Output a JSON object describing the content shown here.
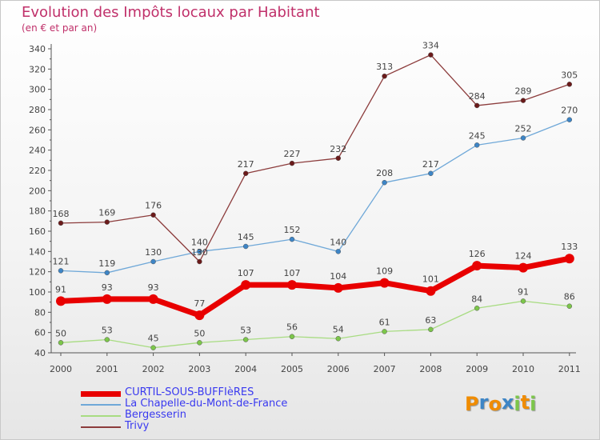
{
  "header": {
    "title": "Evolution des Impôts locaux par Habitant",
    "subtitle": "(en € et par an)"
  },
  "colors": {
    "title": "#c0306a",
    "axis": "#555555",
    "tick_label": "#444444",
    "data_label": "#444444",
    "legend_text": "#3a3af0"
  },
  "chart_data": {
    "type": "line",
    "x": [
      "2000",
      "2001",
      "2002",
      "2003",
      "2004",
      "2005",
      "2006",
      "2007",
      "2008",
      "2009",
      "2010",
      "2011"
    ],
    "ylim": [
      40,
      340
    ],
    "yticks": [
      40,
      60,
      80,
      100,
      120,
      140,
      160,
      180,
      200,
      220,
      240,
      260,
      280,
      300,
      320,
      340
    ],
    "grid": false,
    "legend_position": "bottom-left",
    "series": [
      {
        "name": "CURTIL-SOUS-BUFFIèRES",
        "values": [
          91,
          93,
          93,
          77,
          107,
          107,
          104,
          109,
          101,
          126,
          124,
          133
        ],
        "color": "#e80000",
        "marker": "#e80000",
        "emphasis": true
      },
      {
        "name": "La Chapelle-du-Mont-de-France",
        "values": [
          121,
          119,
          130,
          140,
          145,
          152,
          140,
          208,
          217,
          245,
          252,
          270
        ],
        "color": "#6fa8d8",
        "marker": "#3d85c6",
        "emphasis": false
      },
      {
        "name": "Bergesserin",
        "values": [
          50,
          53,
          45,
          50,
          53,
          56,
          54,
          61,
          63,
          84,
          91,
          86
        ],
        "color": "#a8dc82",
        "marker": "#7cc64a",
        "emphasis": false
      },
      {
        "name": "Trivy",
        "values": [
          168,
          169,
          176,
          130,
          217,
          227,
          232,
          313,
          334,
          284,
          289,
          305
        ],
        "color": "#8c3c3c",
        "marker": "#6b1a1a",
        "emphasis": false
      }
    ]
  },
  "logo": {
    "letters": [
      "P",
      "r",
      "o",
      "x",
      "i",
      "t",
      "i"
    ],
    "colors": [
      "#f08c00",
      "#3d85c6",
      "#f08c00",
      "#3d85c6",
      "#7cc64a",
      "#f08c00",
      "#7cc64a"
    ]
  }
}
